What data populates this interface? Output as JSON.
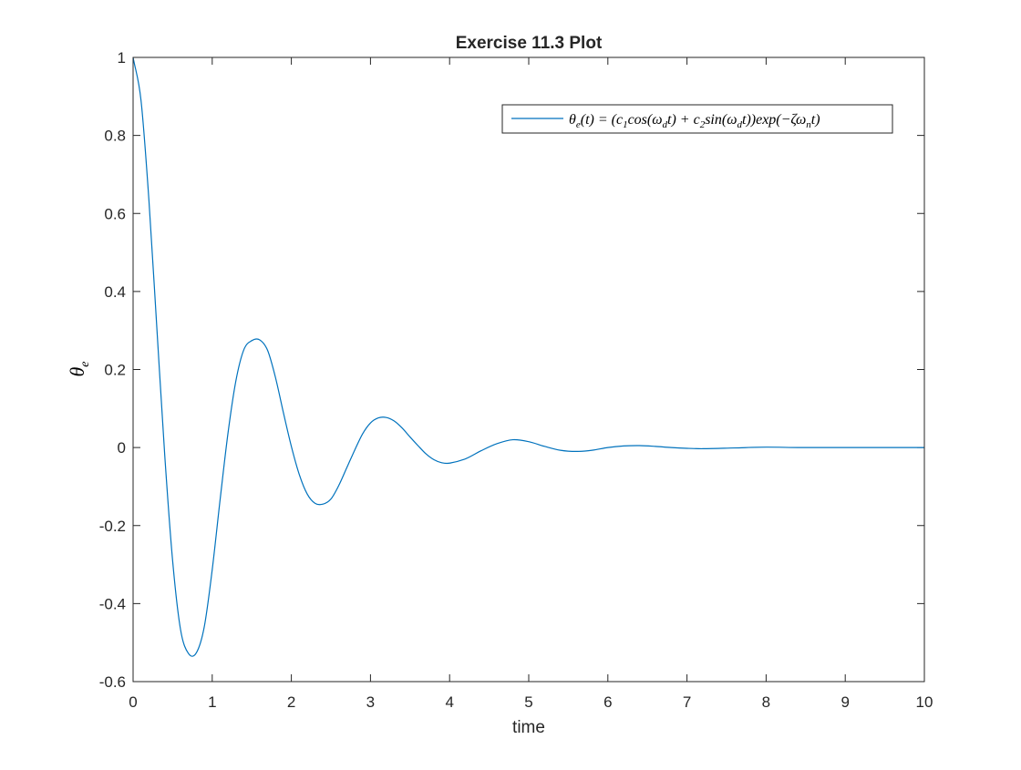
{
  "chart_data": {
    "type": "line",
    "title": "Exercise 11.3 Plot",
    "xlabel": "time",
    "ylabel": "θ_e",
    "xlim": [
      0,
      10
    ],
    "ylim": [
      -0.6,
      1
    ],
    "x_ticks": [
      0,
      1,
      2,
      3,
      4,
      5,
      6,
      7,
      8,
      9,
      10
    ],
    "y_ticks": [
      -0.6,
      -0.4,
      -0.2,
      0,
      0.2,
      0.4,
      0.6,
      0.8,
      1
    ],
    "x_tick_labels": [
      "0",
      "1",
      "2",
      "3",
      "4",
      "5",
      "6",
      "7",
      "8",
      "9",
      "10"
    ],
    "y_tick_labels": [
      "-0.6",
      "-0.4",
      "-0.2",
      "0",
      "0.2",
      "0.4",
      "0.6",
      "0.8",
      "1"
    ],
    "grid": false,
    "box": true,
    "legend_position": "top-right",
    "series": [
      {
        "name": "θe(t) = (c1cos(ωdt) + c2sin(ωdt))exp(−ζωnt)",
        "color": "#0072BD",
        "x": [
          0,
          0.1,
          0.2,
          0.3,
          0.4,
          0.5,
          0.6,
          0.7,
          0.8,
          0.9,
          1.0,
          1.1,
          1.2,
          1.3,
          1.4,
          1.5,
          1.6,
          1.7,
          1.8,
          1.9,
          2.0,
          2.1,
          2.2,
          2.3,
          2.4,
          2.5,
          2.6,
          2.7,
          2.8,
          2.9,
          3.0,
          3.1,
          3.2,
          3.3,
          3.4,
          3.5,
          3.6,
          3.7,
          3.8,
          3.9,
          4.0,
          4.2,
          4.4,
          4.6,
          4.8,
          5.0,
          5.2,
          5.4,
          5.6,
          5.8,
          6.0,
          6.2,
          6.4,
          6.6,
          6.8,
          7.0,
          7.2,
          7.6,
          8.0,
          8.4,
          8.8,
          9.2,
          9.6,
          10.0
        ],
        "values": [
          1.0,
          0.89,
          0.634,
          0.307,
          -0.02,
          -0.291,
          -0.467,
          -0.528,
          -0.526,
          -0.459,
          -0.313,
          -0.133,
          0.038,
          0.172,
          0.251,
          0.274,
          0.276,
          0.249,
          0.179,
          0.089,
          0.003,
          -0.069,
          -0.119,
          -0.143,
          -0.145,
          -0.132,
          -0.097,
          -0.052,
          -0.007,
          0.035,
          0.063,
          0.076,
          0.077,
          0.068,
          0.05,
          0.027,
          0.005,
          -0.016,
          -0.031,
          -0.039,
          -0.04,
          -0.029,
          -0.008,
          0.01,
          0.02,
          0.015,
          0.003,
          -0.007,
          -0.01,
          -0.007,
          0.0,
          0.004,
          0.005,
          0.003,
          0.0,
          -0.002,
          -0.003,
          -0.001,
          0.001,
          0.0,
          0.0,
          0.0,
          0.0,
          0.0
        ]
      }
    ]
  }
}
